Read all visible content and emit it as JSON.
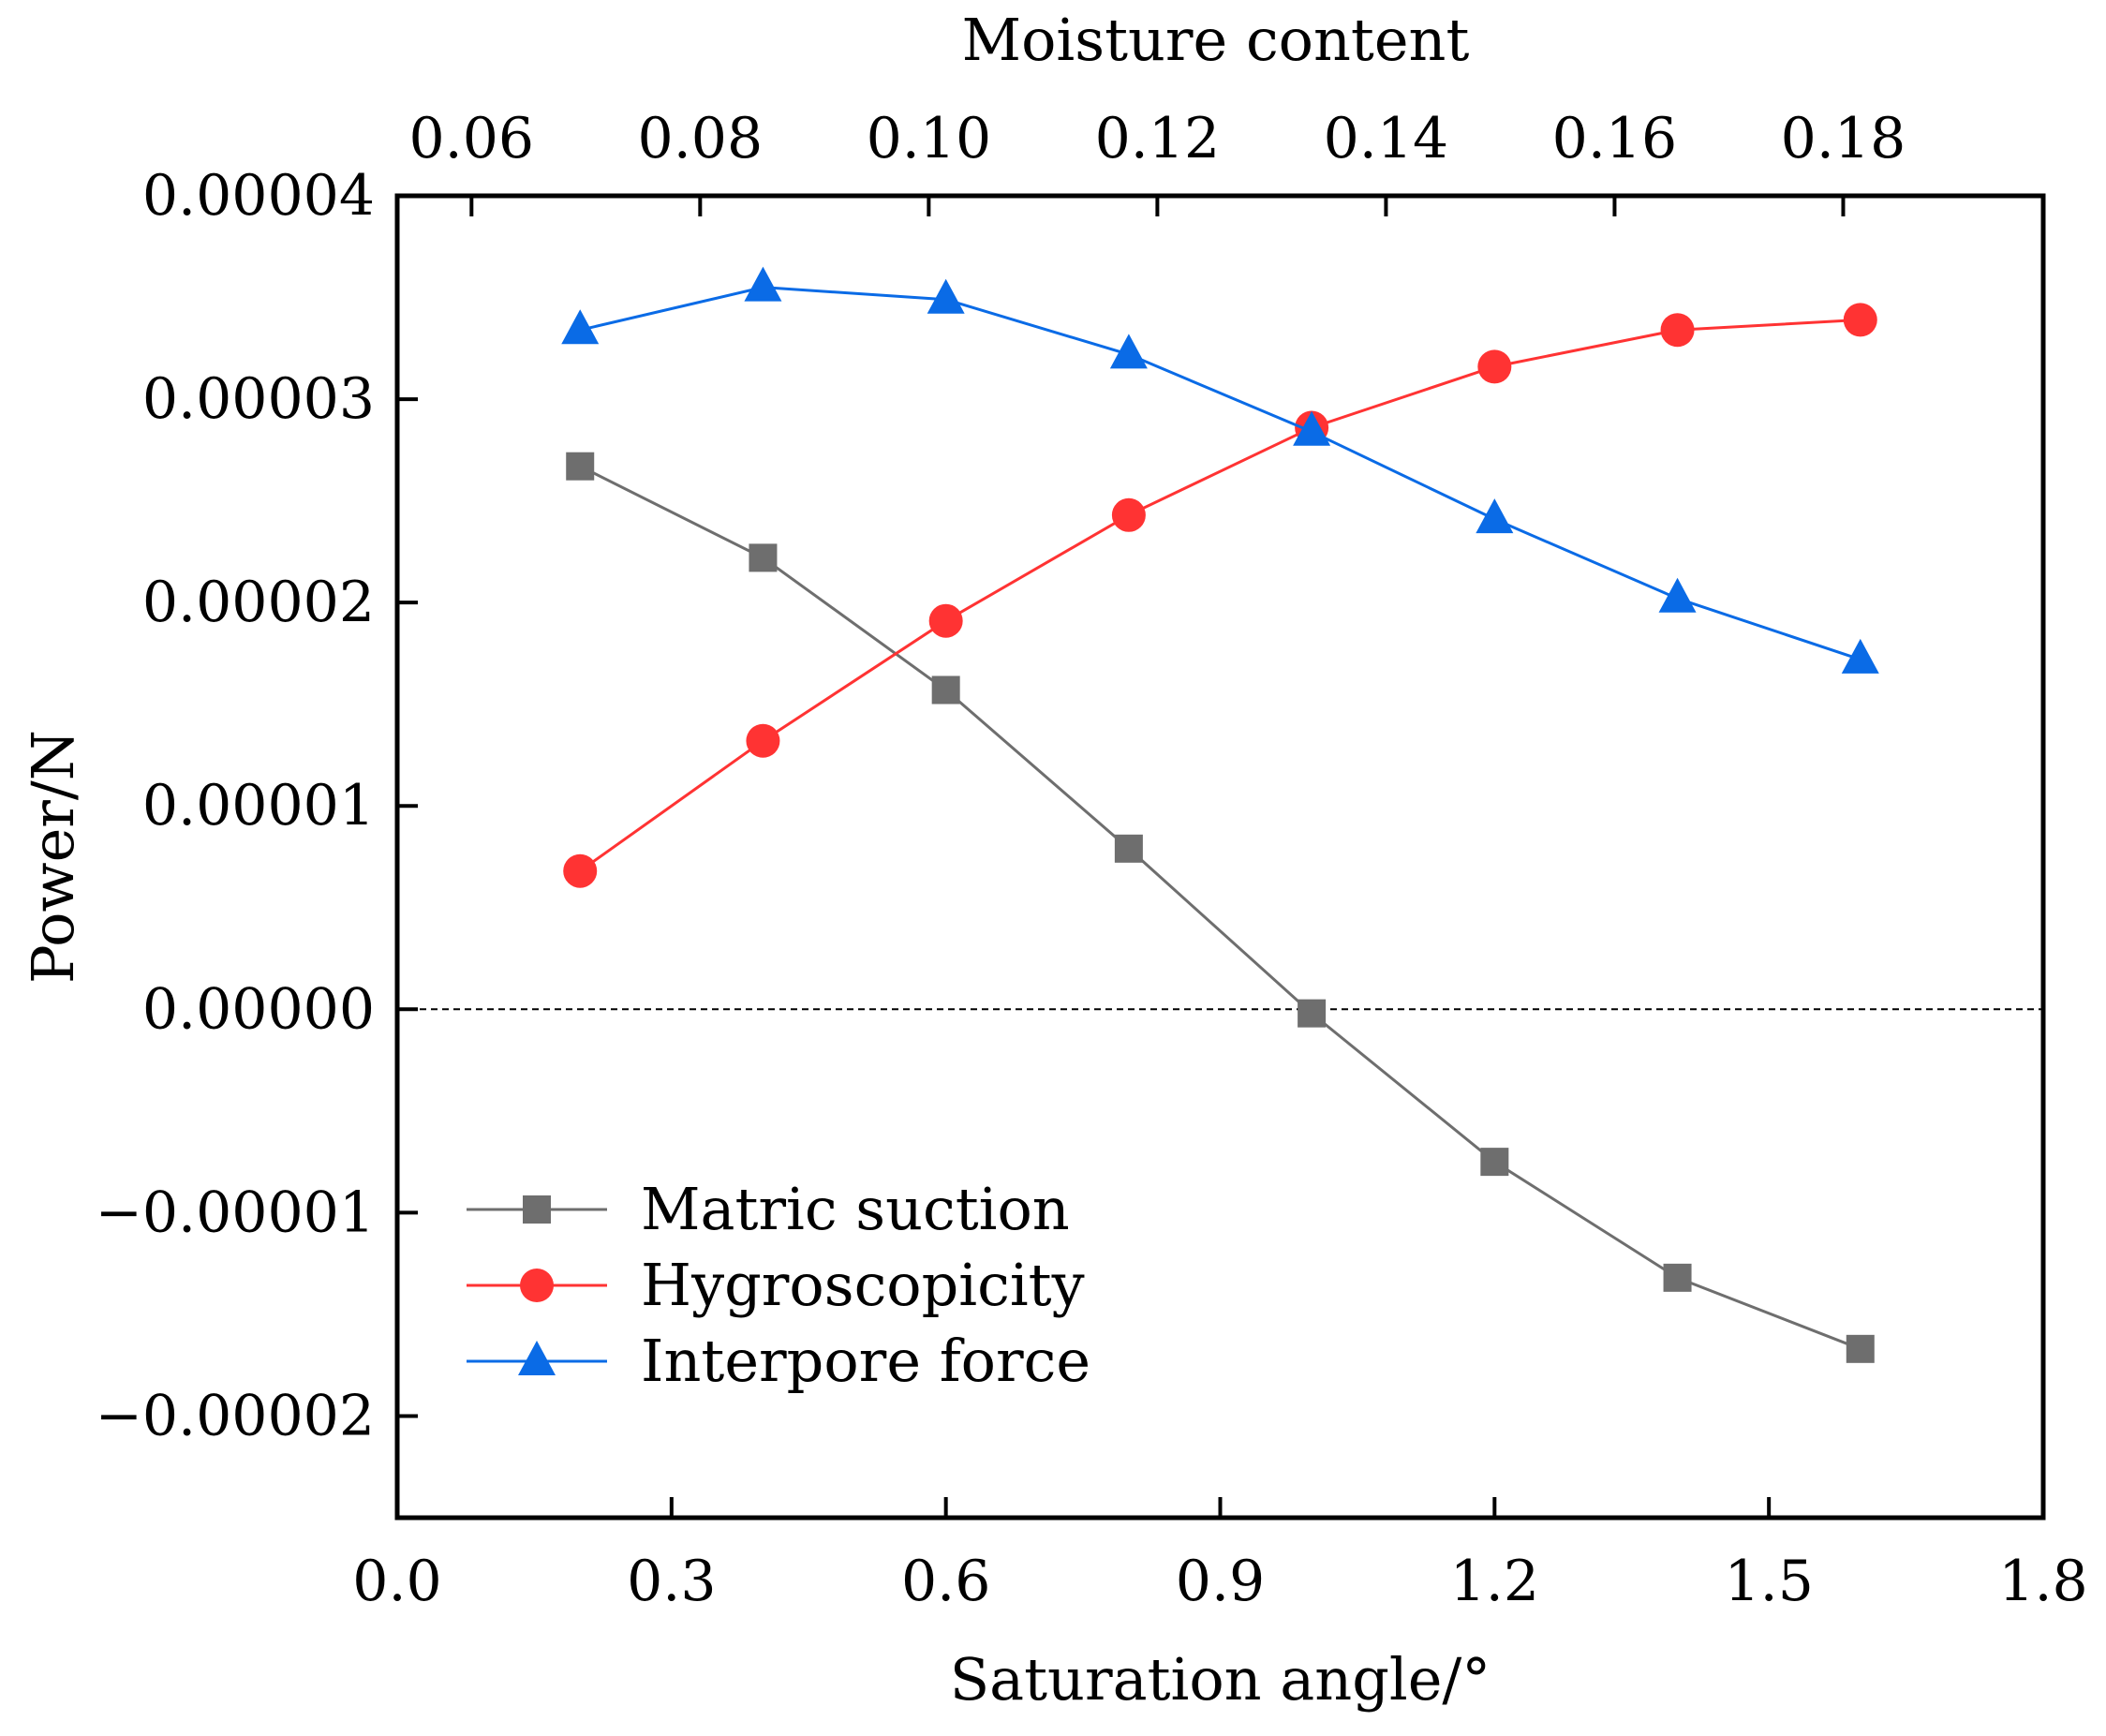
{
  "chart_data": {
    "type": "line",
    "title": "",
    "xlabel": "Saturation angle/°",
    "ylabel": "Power/N",
    "x2label": "Moisture content",
    "xlim": [
      0.0,
      1.8
    ],
    "ylim": [
      -2.5e-05,
      4e-05
    ],
    "x2lim": [
      0.0535,
      0.1975
    ],
    "xticks": [
      "0.0",
      "0.3",
      "0.6",
      "0.9",
      "1.2",
      "1.5",
      "1.8"
    ],
    "yticks": [
      "-0.00002",
      "-0.00001",
      "0.00000",
      "0.00001",
      "0.00002",
      "0.00003",
      "0.00004"
    ],
    "x2ticks": [
      "0.06",
      "0.08",
      "0.10",
      "0.12",
      "0.14",
      "0.16",
      "0.18"
    ],
    "x": [
      0.2,
      0.4,
      0.6,
      0.8,
      1.0,
      1.2,
      1.4,
      1.6
    ],
    "reference_line_y": 0,
    "series": [
      {
        "name": "Matric suction",
        "color": "#6e6e6e",
        "marker": "square",
        "values": [
          2.67e-05,
          2.22e-05,
          1.57e-05,
          7.9e-06,
          -2e-07,
          -7.5e-06,
          -1.32e-05,
          -1.67e-05
        ]
      },
      {
        "name": "Hygroscopicity",
        "color": "#ff3333",
        "marker": "circle",
        "values": [
          6.8e-06,
          1.32e-05,
          1.91e-05,
          2.43e-05,
          2.86e-05,
          3.16e-05,
          3.34e-05,
          3.39e-05
        ]
      },
      {
        "name": "Interpore force",
        "color": "#0a6be6",
        "marker": "triangle",
        "values": [
          3.34e-05,
          3.55e-05,
          3.49e-05,
          3.22e-05,
          2.84e-05,
          2.41e-05,
          2.02e-05,
          1.72e-05
        ]
      }
    ],
    "legend_position": "bottom-left"
  }
}
